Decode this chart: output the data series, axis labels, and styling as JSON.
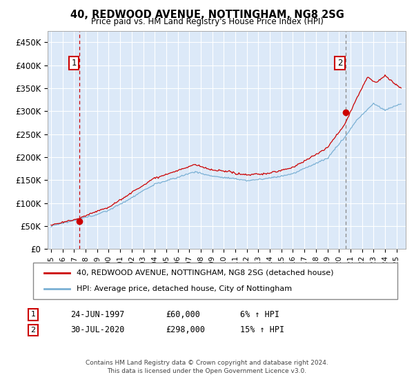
{
  "title": "40, REDWOOD AVENUE, NOTTINGHAM, NG8 2SG",
  "subtitle": "Price paid vs. HM Land Registry's House Price Index (HPI)",
  "ylim": [
    0,
    475000
  ],
  "yticks": [
    0,
    50000,
    100000,
    150000,
    200000,
    250000,
    300000,
    350000,
    400000,
    450000
  ],
  "ytick_labels": [
    "£0",
    "£50K",
    "£100K",
    "£150K",
    "£200K",
    "£250K",
    "£300K",
    "£350K",
    "£400K",
    "£450K"
  ],
  "xlim_start": 1994.7,
  "xlim_end": 2025.8,
  "xtick_years": [
    1995,
    1996,
    1997,
    1998,
    1999,
    2000,
    2001,
    2002,
    2003,
    2004,
    2005,
    2006,
    2007,
    2008,
    2009,
    2010,
    2011,
    2012,
    2013,
    2014,
    2015,
    2016,
    2017,
    2018,
    2019,
    2020,
    2021,
    2022,
    2023,
    2024,
    2025
  ],
  "sale1_x": 1997.48,
  "sale1_y": 60000,
  "sale1_label": "1",
  "sale1_date": "24-JUN-1997",
  "sale1_price": "£60,000",
  "sale1_hpi": "6% ↑ HPI",
  "sale2_x": 2020.58,
  "sale2_y": 298000,
  "sale2_label": "2",
  "sale2_date": "30-JUL-2020",
  "sale2_price": "£298,000",
  "sale2_hpi": "15% ↑ HPI",
  "line1_color": "#cc0000",
  "line2_color": "#7ab0d4",
  "vline1_color": "#cc0000",
  "vline2_color": "#888888",
  "marker_color": "#cc0000",
  "plot_bg_color": "#dce9f8",
  "legend1_label": "40, REDWOOD AVENUE, NOTTINGHAM, NG8 2SG (detached house)",
  "legend2_label": "HPI: Average price, detached house, City of Nottingham",
  "footnote": "Contains HM Land Registry data © Crown copyright and database right 2024.\nThis data is licensed under the Open Government Licence v3.0."
}
